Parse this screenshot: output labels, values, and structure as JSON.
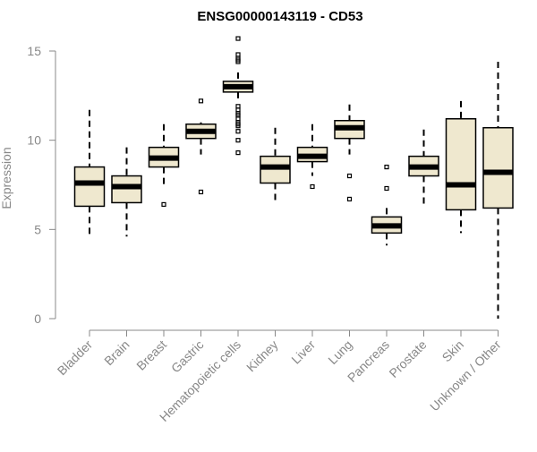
{
  "chart_data": {
    "type": "box",
    "title": "ENSG00000143119 - CD53",
    "xlabel": "",
    "ylabel": "Expression",
    "ylim": [
      0,
      15.5
    ],
    "y_ticks": [
      "0",
      "5",
      "10",
      "15"
    ],
    "grid": false,
    "legend": "none",
    "box_color": "#efe8cf",
    "edge_color": "#000000",
    "axis_color": "#888888",
    "categories": [
      "Bladder",
      "Brain",
      "Breast",
      "Gastric",
      "Hematopoietic cells",
      "Kidney",
      "Liver",
      "Lung",
      "Pancreas",
      "Prostate",
      "Skin",
      "Unknown / Other"
    ],
    "boxes": [
      {
        "category": "Bladder",
        "whisker_low": 4.5,
        "q1": 6.3,
        "median": 7.6,
        "q3": 8.5,
        "whisker_high": 11.7,
        "outliers": []
      },
      {
        "category": "Brain",
        "whisker_low": 4.6,
        "q1": 6.5,
        "median": 7.4,
        "q3": 8.0,
        "whisker_high": 9.6,
        "outliers": []
      },
      {
        "category": "Breast",
        "whisker_low": 7.3,
        "q1": 8.5,
        "median": 9.0,
        "q3": 9.6,
        "whisker_high": 10.9,
        "outliers": [
          6.4
        ]
      },
      {
        "category": "Gastric",
        "whisker_low": 9.2,
        "q1": 10.1,
        "median": 10.5,
        "q3": 10.9,
        "whisker_high": 11.0,
        "outliers": [
          12.2,
          7.1
        ]
      },
      {
        "category": "Hematopoietic cells",
        "whisker_low": 12.2,
        "q1": 12.7,
        "median": 13.0,
        "q3": 13.3,
        "whisker_high": 13.8,
        "outliers": [
          15.7,
          14.8,
          14.6,
          14.5,
          14.4,
          11.9,
          11.7,
          11.5,
          11.4,
          11.2,
          11.0,
          10.9,
          10.8,
          10.5,
          10.0,
          9.3
        ]
      },
      {
        "category": "Kidney",
        "whisker_low": 6.4,
        "q1": 7.6,
        "median": 8.5,
        "q3": 9.1,
        "whisker_high": 10.7,
        "outliers": []
      },
      {
        "category": "Liver",
        "whisker_low": 8.0,
        "q1": 8.8,
        "median": 9.1,
        "q3": 9.6,
        "whisker_high": 10.9,
        "outliers": [
          7.4
        ]
      },
      {
        "category": "Lung",
        "whisker_low": 9.2,
        "q1": 10.1,
        "median": 10.7,
        "q3": 11.1,
        "whisker_high": 12.0,
        "outliers": [
          8.0,
          6.7
        ]
      },
      {
        "category": "Pancreas",
        "whisker_low": 4.1,
        "q1": 4.8,
        "median": 5.2,
        "q3": 5.7,
        "whisker_high": 6.2,
        "outliers": [
          8.5,
          7.3
        ]
      },
      {
        "category": "Prostate",
        "whisker_low": 6.2,
        "q1": 8.0,
        "median": 8.5,
        "q3": 9.1,
        "whisker_high": 10.6,
        "outliers": []
      },
      {
        "category": "Skin",
        "whisker_low": 4.8,
        "q1": 6.1,
        "median": 7.5,
        "q3": 11.2,
        "whisker_high": 12.2,
        "outliers": []
      },
      {
        "category": "Unknown / Other",
        "whisker_low": 0.0,
        "q1": 6.2,
        "median": 8.2,
        "q3": 10.7,
        "whisker_high": 14.4,
        "outliers": []
      }
    ]
  }
}
